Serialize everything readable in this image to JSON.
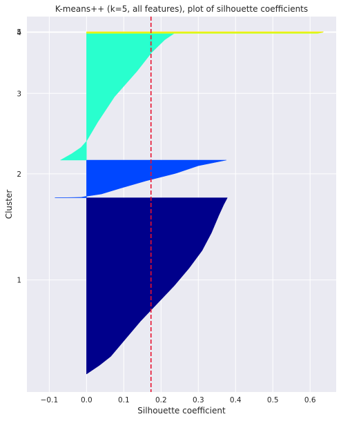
{
  "chart_data": {
    "type": "bar",
    "orientation": "horizontal",
    "title": "K-means++ (k=5, all features), plot of silhouette coefficients",
    "xlabel": "Silhouette coefficient",
    "ylabel": "Cluster",
    "xlim": [
      -0.16,
      0.67
    ],
    "grid": true,
    "x_ticks": [
      {
        "value": -0.1,
        "label": "−0.1"
      },
      {
        "value": 0.0,
        "label": "0.0"
      },
      {
        "value": 0.1,
        "label": "0.1"
      },
      {
        "value": 0.2,
        "label": "0.2"
      },
      {
        "value": 0.3,
        "label": "0.3"
      },
      {
        "value": 0.4,
        "label": "0.4"
      },
      {
        "value": 0.5,
        "label": "0.5"
      },
      {
        "value": 0.6,
        "label": "0.6"
      }
    ],
    "y_ticks": [
      {
        "value": 1,
        "label": "1",
        "y_pos": 0.275
      },
      {
        "value": 2,
        "label": "2",
        "y_pos": 0.585
      },
      {
        "value": 3,
        "label": "3",
        "y_pos": 0.82
      },
      {
        "value": 4,
        "label": "4",
        "y_pos": 0.998
      },
      {
        "value": 5,
        "label": "5",
        "y_pos": 1.0
      }
    ],
    "average_silhouette": 0.173,
    "average_line_color": "#e8112d",
    "clusters": [
      {
        "label": "1",
        "color": "#00008b",
        "y_range": [
          0.0,
          0.515
        ],
        "profile": [
          [
            0.0,
            0.0
          ],
          [
            0.05,
            0.035
          ],
          [
            0.1,
            0.065
          ],
          [
            0.2,
            0.105
          ],
          [
            0.3,
            0.145
          ],
          [
            0.4,
            0.19
          ],
          [
            0.5,
            0.235
          ],
          [
            0.6,
            0.275
          ],
          [
            0.7,
            0.31
          ],
          [
            0.8,
            0.335
          ],
          [
            0.9,
            0.355
          ],
          [
            0.96,
            0.368
          ],
          [
            1.0,
            0.378
          ]
        ]
      },
      {
        "label": "2",
        "color": "#0047ff",
        "y_range": [
          0.515,
          0.625
        ],
        "profile": [
          [
            0.0,
            -0.085
          ],
          [
            0.012,
            -0.015
          ],
          [
            0.04,
            0.0
          ],
          [
            0.1,
            0.04
          ],
          [
            0.25,
            0.09
          ],
          [
            0.45,
            0.16
          ],
          [
            0.65,
            0.24
          ],
          [
            0.85,
            0.3
          ],
          [
            1.0,
            0.375
          ]
        ]
      },
      {
        "label": "3",
        "color": "#29ffce",
        "y_range": [
          0.625,
          0.995
        ],
        "profile": [
          [
            0.0,
            -0.07
          ],
          [
            0.05,
            -0.04
          ],
          [
            0.1,
            -0.015
          ],
          [
            0.15,
            0.0
          ],
          [
            0.3,
            0.03
          ],
          [
            0.5,
            0.075
          ],
          [
            0.7,
            0.135
          ],
          [
            0.85,
            0.175
          ],
          [
            0.95,
            0.21
          ],
          [
            1.0,
            0.235
          ]
        ]
      },
      {
        "label": "4",
        "color": "#ceff29",
        "y_range": [
          0.995,
          0.9985
        ],
        "profile": [
          [
            0.0,
            0.62
          ],
          [
            1.0,
            0.635
          ]
        ]
      },
      {
        "label": "5",
        "color": "#ffe600",
        "y_range": [
          0.9985,
          1.0
        ],
        "profile": [
          [
            0.0,
            0.63
          ],
          [
            1.0,
            0.636
          ]
        ]
      }
    ]
  }
}
